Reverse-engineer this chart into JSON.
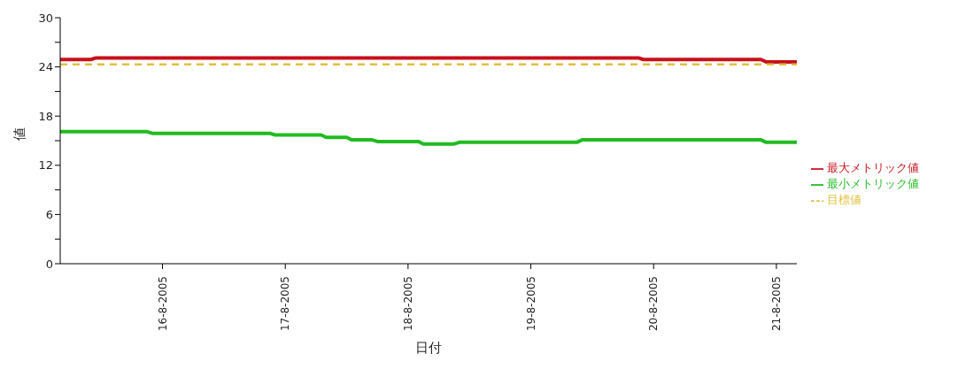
{
  "chart_data": {
    "type": "line",
    "xlabel": "日付",
    "ylabel": "値",
    "xlim": [
      "2005-08-15T04:00",
      "2005-08-21T04:00"
    ],
    "xticks": [
      {
        "value": "2005-08-16",
        "label": "16-8-2005"
      },
      {
        "value": "2005-08-17",
        "label": "17-8-2005"
      },
      {
        "value": "2005-08-18",
        "label": "18-8-2005"
      },
      {
        "value": "2005-08-19",
        "label": "19-8-2005"
      },
      {
        "value": "2005-08-20",
        "label": "20-8-2005"
      },
      {
        "value": "2005-08-21",
        "label": "21-8-2005"
      }
    ],
    "ylim": [
      0,
      30
    ],
    "yticks": [
      0,
      {
        "value": 3,
        "label": null
      },
      6,
      {
        "value": 9,
        "label": null
      },
      12,
      {
        "value": 15,
        "label": null
      },
      18,
      {
        "value": 21,
        "label": null
      },
      24,
      {
        "value": 27,
        "label": null
      },
      30
    ],
    "grid": false,
    "legend": "right",
    "marker": "none",
    "series": [
      {
        "name": "最大メトリック値",
        "color": "#c8101a",
        "line_style": "solid",
        "x": [
          "2005-08-15T04:00",
          "2005-08-15T10:00",
          "2005-08-15T11:00",
          "2005-08-19T21:00",
          "2005-08-19T22:00",
          "2005-08-20T21:00",
          "2005-08-20T22:00",
          "2005-08-21T04:00"
        ],
        "values": [
          24.9,
          24.9,
          25.1,
          25.1,
          24.9,
          24.9,
          24.6,
          24.6
        ]
      },
      {
        "name": "最小メトリック値",
        "color": "#22bb22",
        "line_style": "solid",
        "x": [
          "2005-08-15T04:00",
          "2005-08-15T21:00",
          "2005-08-15T22:00",
          "2005-08-16T21:00",
          "2005-08-16T22:00",
          "2005-08-17T07:00",
          "2005-08-17T08:00",
          "2005-08-17T12:00",
          "2005-08-17T13:00",
          "2005-08-17T17:00",
          "2005-08-17T18:00",
          "2005-08-18T02:00",
          "2005-08-18T03:00",
          "2005-08-18T09:00",
          "2005-08-18T10:00",
          "2005-08-19T09:00",
          "2005-08-19T10:00",
          "2005-08-20T21:00",
          "2005-08-20T22:00",
          "2005-08-21T04:00"
        ],
        "values": [
          16.1,
          16.1,
          15.9,
          15.9,
          15.7,
          15.7,
          15.4,
          15.4,
          15.1,
          15.1,
          14.9,
          14.9,
          14.6,
          14.6,
          14.8,
          14.8,
          15.1,
          15.1,
          14.8,
          14.8
        ]
      },
      {
        "name": "目標値",
        "color": "#e0c040",
        "line_style": "dashed",
        "x": [
          "2005-08-15T04:00",
          "2005-08-21T04:00"
        ],
        "values": [
          24.3,
          24.3
        ]
      }
    ]
  }
}
